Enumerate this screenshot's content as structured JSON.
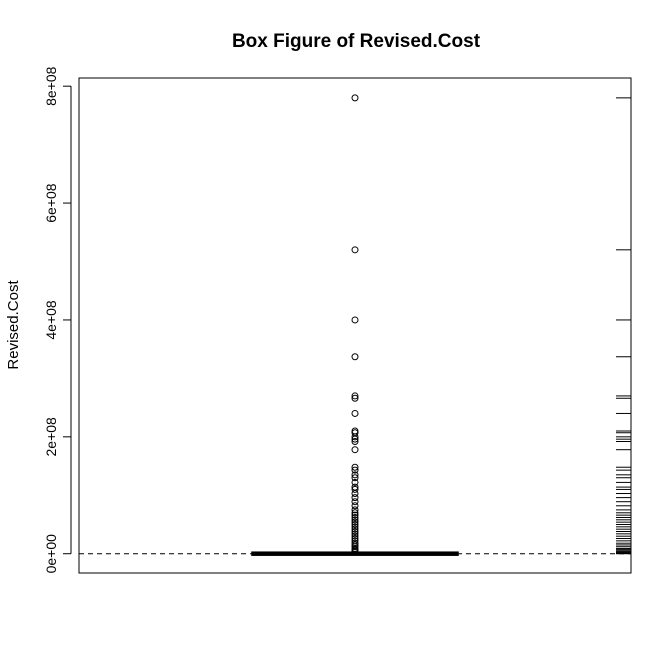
{
  "chart_data": {
    "type": "box",
    "title": "Box Figure of Revised.Cost",
    "xlabel": "",
    "ylabel": "Revised.Cost",
    "ylim": [
      -33000000,
      814000000
    ],
    "yticks": [
      0,
      200000000,
      400000000,
      600000000,
      800000000
    ],
    "ytick_labels": [
      "0e+00",
      "2e+08",
      "4e+08",
      "6e+08",
      "8e+08"
    ],
    "box": {
      "min": 0,
      "q1": 200000,
      "median": 400000,
      "q3": 900000,
      "whisker_high": 2000000
    },
    "reference_line": {
      "y": 0,
      "style": "dashed"
    },
    "outliers": [
      780000000,
      520000000,
      400000000,
      337000000,
      270000000,
      266000000,
      240000000,
      210000000,
      207000000,
      200000000,
      196000000,
      192000000,
      178000000,
      148000000,
      143000000,
      135000000,
      130000000,
      122000000,
      114000000,
      110000000,
      103000000,
      96000000,
      89000000,
      82000000,
      75000000,
      70000000,
      66000000,
      62000000,
      58000000,
      54000000,
      50000000,
      46000000,
      42000000,
      38000000,
      34000000,
      30000000,
      26000000,
      22000000,
      18000000,
      15000000,
      12000000,
      9000000,
      7000000,
      5000000,
      3500000
    ],
    "rug": [
      780000000,
      520000000,
      400000000,
      337000000,
      270000000,
      266000000,
      240000000,
      210000000,
      207000000,
      200000000,
      196000000,
      192000000,
      178000000,
      148000000,
      143000000,
      135000000,
      130000000,
      122000000,
      114000000,
      110000000,
      103000000,
      96000000,
      89000000,
      82000000,
      75000000,
      70000000,
      66000000,
      62000000,
      58000000,
      54000000,
      50000000,
      46000000,
      42000000,
      38000000,
      34000000,
      30000000,
      26000000,
      22000000,
      18000000,
      15000000,
      12000000,
      9000000,
      7000000,
      5000000,
      3500000,
      2000000,
      1000000,
      500000,
      0
    ]
  }
}
